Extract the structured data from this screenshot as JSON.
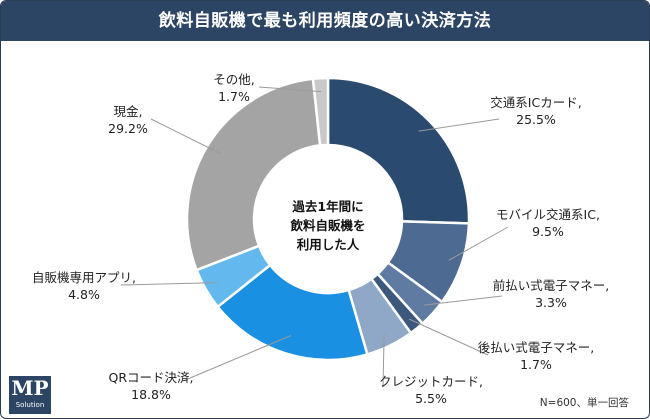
{
  "title": "飲料自販機で最も利用頻度の高い決済方法",
  "center_label": [
    "過去1年間に",
    "飲料自販機を",
    "利用した人"
  ],
  "note": "N=600、単一回答",
  "logo": {
    "mark": "MP",
    "sub": "Solution"
  },
  "chart_data": {
    "type": "pie",
    "title": "飲料自販機で最も利用頻度の高い決済方法",
    "unit": "%",
    "categories": [
      "交通系ICカード",
      "モバイル交通系IC",
      "前払い式電子マネー",
      "後払い式電子マネー",
      "クレジットカード",
      "QRコード決済",
      "自販機専用アプリ",
      "現金",
      "その他"
    ],
    "values": [
      25.5,
      9.5,
      3.3,
      1.7,
      5.5,
      18.8,
      4.8,
      29.2,
      1.7
    ],
    "value_labels": [
      "25.5%",
      "9.5%",
      "3.3%",
      "1.7%",
      "5.5%",
      "18.8%",
      "4.8%",
      "29.2%",
      "1.7%"
    ],
    "colors": [
      "#2b4a6f",
      "#4c6a92",
      "#5f7ba2",
      "#3c587c",
      "#8fa8c8",
      "#1a90e2",
      "#63b9ee",
      "#a4a4a4",
      "#c9c9c9"
    ],
    "label_suffix": ","
  }
}
